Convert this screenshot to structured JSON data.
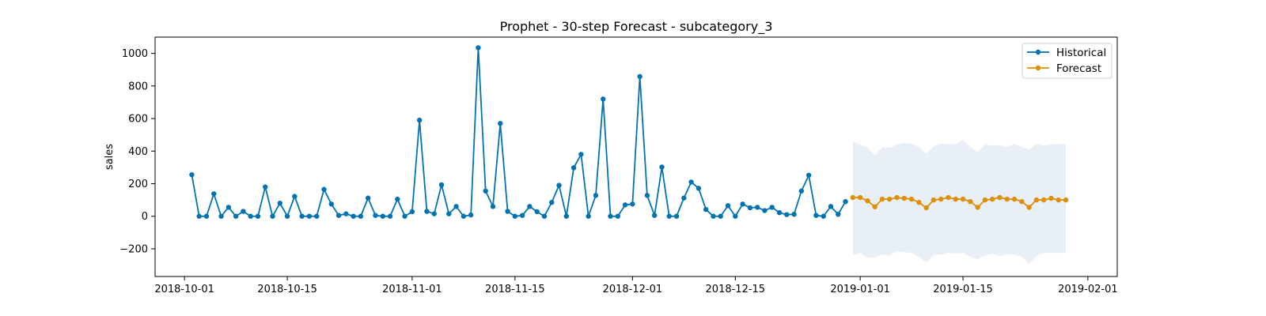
{
  "chart_data": {
    "type": "line",
    "title": "Prophet - 30-step Forecast - subcategory_3",
    "xlabel": "",
    "ylabel": "sales",
    "xlim": [
      "2018-09-27",
      "2019-02-05"
    ],
    "ylim": [
      -370,
      1100
    ],
    "yticks": [
      -200,
      0,
      200,
      400,
      600,
      800,
      1000
    ],
    "yticklabels": [
      "−200",
      "0",
      "200",
      "400",
      "600",
      "800",
      "1000"
    ],
    "xticks": [
      "2018-10-01",
      "2018-10-15",
      "2018-11-01",
      "2018-11-15",
      "2018-12-01",
      "2018-12-15",
      "2019-01-01",
      "2019-01-15",
      "2019-02-01"
    ],
    "xticklabels": [
      "2018-10-01",
      "2018-10-15",
      "2018-11-01",
      "2018-11-15",
      "2018-12-01",
      "2018-12-15",
      "2019-01-01",
      "2019-01-15",
      "2019-02-01"
    ],
    "legend_position": "top-right",
    "colors": {
      "historical": "#0173b2",
      "forecast": "#de8f05",
      "band": "#e8eff7"
    },
    "series": [
      {
        "name": "Historical",
        "start_date": "2018-10-02",
        "values": [
          255,
          0,
          0,
          138,
          0,
          55,
          0,
          30,
          0,
          0,
          180,
          0,
          80,
          0,
          122,
          0,
          0,
          0,
          165,
          75,
          5,
          15,
          0,
          0,
          112,
          5,
          0,
          0,
          105,
          0,
          28,
          590,
          30,
          15,
          193,
          15,
          60,
          0,
          8,
          1035,
          155,
          60,
          570,
          30,
          0,
          5,
          60,
          28,
          0,
          85,
          190,
          0,
          298,
          380,
          0,
          128,
          720,
          0,
          0,
          70,
          75,
          858,
          128,
          5,
          302,
          0,
          0,
          112,
          210,
          172,
          42,
          0,
          0,
          65,
          0,
          75,
          52,
          55,
          35,
          55,
          22,
          10,
          12,
          155,
          252,
          5,
          0,
          60,
          12,
          90
        ]
      },
      {
        "name": "Forecast",
        "start_date": "2018-12-31",
        "values": [
          115,
          115,
          95,
          58,
          105,
          105,
          115,
          110,
          105,
          85,
          52,
          100,
          105,
          115,
          105,
          105,
          90,
          55,
          100,
          105,
          115,
          105,
          105,
          90,
          55,
          100,
          100,
          110,
          100,
          100
        ],
        "upper": [
          460,
          440,
          420,
          375,
          425,
          420,
          440,
          450,
          445,
          425,
          385,
          430,
          445,
          445,
          440,
          470,
          425,
          395,
          440,
          435,
          435,
          425,
          445,
          425,
          410,
          445,
          435,
          440,
          445,
          445
        ],
        "lower": [
          -240,
          -225,
          -255,
          -255,
          -235,
          -240,
          -215,
          -220,
          -225,
          -250,
          -285,
          -240,
          -235,
          -225,
          -230,
          -225,
          -250,
          -265,
          -240,
          -230,
          -245,
          -235,
          -235,
          -250,
          -290,
          -245,
          -225,
          -225,
          -225,
          -225
        ]
      }
    ]
  }
}
